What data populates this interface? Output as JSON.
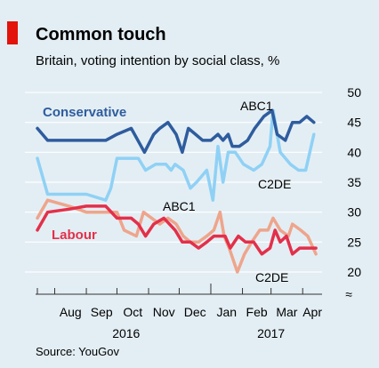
{
  "header": {
    "title": "Common touch",
    "subtitle": "Britain, voting intention by social class, %"
  },
  "footer": {
    "source": "Source: YouGov"
  },
  "colors": {
    "background": "#e3eef4",
    "accent": "#e3120b",
    "grid": "#ffffff",
    "conservative_abc1": "#2e5c9e",
    "conservative_c2de": "#8fd1f5",
    "labour_abc1": "#e3304a",
    "labour_c2de": "#eea58c"
  },
  "chart_data": {
    "type": "line",
    "title": "Common touch",
    "subtitle": "Britain, voting intention by social class, %",
    "ylim": [
      20,
      50
    ],
    "y_ticks": [
      20,
      25,
      30,
      35,
      40,
      45,
      50
    ],
    "x_range": [
      "2016-07-15",
      "2017-04-20"
    ],
    "x_month_labels": [
      "Aug",
      "Sep",
      "Oct",
      "Nov",
      "Dec",
      "Jan",
      "Feb",
      "Mar",
      "Apr"
    ],
    "x_year_labels": [
      "2016",
      "2017"
    ],
    "grid": "horizontal",
    "axis_break_symbol": "≈",
    "series": [
      {
        "party": "Conservative",
        "class": "C2DE",
        "label": "C2DE",
        "color": "#8fd1f5",
        "points": [
          [
            "2016-07-15",
            39
          ],
          [
            "2016-07-25",
            33
          ],
          [
            "2016-08-15",
            33
          ],
          [
            "2016-09-01",
            33
          ],
          [
            "2016-09-20",
            32
          ],
          [
            "2016-09-25",
            34
          ],
          [
            "2016-10-01",
            39
          ],
          [
            "2016-10-15",
            39
          ],
          [
            "2016-10-22",
            39
          ],
          [
            "2016-10-29",
            37
          ],
          [
            "2016-11-08",
            38
          ],
          [
            "2016-11-18",
            38
          ],
          [
            "2016-11-23",
            37
          ],
          [
            "2016-11-27",
            38
          ],
          [
            "2016-12-05",
            37
          ],
          [
            "2016-12-12",
            34
          ],
          [
            "2016-12-18",
            35
          ],
          [
            "2016-12-28",
            37
          ],
          [
            "2017-01-03",
            32
          ],
          [
            "2017-01-08",
            41
          ],
          [
            "2017-01-13",
            35
          ],
          [
            "2017-01-18",
            40
          ],
          [
            "2017-01-25",
            40
          ],
          [
            "2017-02-02",
            38
          ],
          [
            "2017-02-12",
            37
          ],
          [
            "2017-02-20",
            38
          ],
          [
            "2017-02-28",
            41
          ],
          [
            "2017-03-03",
            47
          ],
          [
            "2017-03-10",
            40
          ],
          [
            "2017-03-20",
            38
          ],
          [
            "2017-03-28",
            37
          ],
          [
            "2017-04-04",
            37
          ],
          [
            "2017-04-12",
            43
          ]
        ]
      },
      {
        "party": "Conservative",
        "class": "ABC1",
        "label": "ABC1",
        "color": "#2e5c9e",
        "points": [
          [
            "2016-07-15",
            44
          ],
          [
            "2016-07-25",
            42
          ],
          [
            "2016-08-15",
            42
          ],
          [
            "2016-09-01",
            42
          ],
          [
            "2016-09-20",
            42
          ],
          [
            "2016-10-01",
            43
          ],
          [
            "2016-10-15",
            44
          ],
          [
            "2016-10-28",
            40
          ],
          [
            "2016-11-06",
            43
          ],
          [
            "2016-11-12",
            44
          ],
          [
            "2016-11-20",
            45
          ],
          [
            "2016-11-28",
            43
          ],
          [
            "2016-12-04",
            40
          ],
          [
            "2016-12-10",
            44
          ],
          [
            "2016-12-17",
            43
          ],
          [
            "2016-12-24",
            42
          ],
          [
            "2017-01-01",
            42
          ],
          [
            "2017-01-08",
            43
          ],
          [
            "2017-01-13",
            42
          ],
          [
            "2017-01-18",
            43
          ],
          [
            "2017-01-22",
            41
          ],
          [
            "2017-01-29",
            41
          ],
          [
            "2017-02-06",
            42
          ],
          [
            "2017-02-13",
            44
          ],
          [
            "2017-02-22",
            46
          ],
          [
            "2017-03-02",
            47
          ],
          [
            "2017-03-07",
            43
          ],
          [
            "2017-03-15",
            42
          ],
          [
            "2017-03-22",
            45
          ],
          [
            "2017-03-29",
            45
          ],
          [
            "2017-04-05",
            46
          ],
          [
            "2017-04-12",
            45
          ]
        ]
      },
      {
        "party": "Labour",
        "class": "C2DE",
        "label": "C2DE",
        "color": "#eea58c",
        "points": [
          [
            "2016-07-15",
            29
          ],
          [
            "2016-07-25",
            32
          ],
          [
            "2016-08-15",
            31
          ],
          [
            "2016-09-01",
            30
          ],
          [
            "2016-09-20",
            30
          ],
          [
            "2016-10-01",
            30
          ],
          [
            "2016-10-08",
            27
          ],
          [
            "2016-10-20",
            26
          ],
          [
            "2016-10-27",
            30
          ],
          [
            "2016-11-04",
            29
          ],
          [
            "2016-11-12",
            28
          ],
          [
            "2016-11-20",
            29
          ],
          [
            "2016-11-28",
            28
          ],
          [
            "2016-12-05",
            26
          ],
          [
            "2016-12-12",
            25
          ],
          [
            "2016-12-20",
            25
          ],
          [
            "2016-12-28",
            26
          ],
          [
            "2017-01-04",
            27
          ],
          [
            "2017-01-10",
            30
          ],
          [
            "2017-01-14",
            26
          ],
          [
            "2017-01-19",
            24
          ],
          [
            "2017-01-27",
            20
          ],
          [
            "2017-02-03",
            23
          ],
          [
            "2017-02-10",
            25
          ],
          [
            "2017-02-18",
            27
          ],
          [
            "2017-02-26",
            27
          ],
          [
            "2017-03-03",
            29
          ],
          [
            "2017-03-10",
            27
          ],
          [
            "2017-03-18",
            26
          ],
          [
            "2017-03-22",
            28
          ],
          [
            "2017-03-30",
            27
          ],
          [
            "2017-04-06",
            26
          ],
          [
            "2017-04-14",
            23
          ]
        ]
      },
      {
        "party": "Labour",
        "class": "ABC1",
        "label": "ABC1",
        "color": "#e3304a",
        "points": [
          [
            "2016-07-15",
            27
          ],
          [
            "2016-07-25",
            30
          ],
          [
            "2016-08-15",
            30.5
          ],
          [
            "2016-09-01",
            31
          ],
          [
            "2016-09-20",
            31
          ],
          [
            "2016-10-01",
            29
          ],
          [
            "2016-10-15",
            29
          ],
          [
            "2016-10-22",
            28
          ],
          [
            "2016-10-29",
            26
          ],
          [
            "2016-11-06",
            28
          ],
          [
            "2016-11-16",
            29
          ],
          [
            "2016-11-27",
            27
          ],
          [
            "2016-12-04",
            25
          ],
          [
            "2016-12-12",
            25
          ],
          [
            "2016-12-20",
            24
          ],
          [
            "2016-12-28",
            25
          ],
          [
            "2017-01-04",
            26
          ],
          [
            "2017-01-10",
            26
          ],
          [
            "2017-01-15",
            26
          ],
          [
            "2017-01-20",
            24
          ],
          [
            "2017-01-28",
            26
          ],
          [
            "2017-02-04",
            25
          ],
          [
            "2017-02-12",
            25
          ],
          [
            "2017-02-20",
            23
          ],
          [
            "2017-02-28",
            24
          ],
          [
            "2017-03-05",
            27
          ],
          [
            "2017-03-10",
            25
          ],
          [
            "2017-03-16",
            26
          ],
          [
            "2017-03-22",
            23
          ],
          [
            "2017-03-29",
            24
          ],
          [
            "2017-04-05",
            24
          ],
          [
            "2017-04-14",
            24
          ]
        ]
      }
    ],
    "annotations": {
      "conservative_label": "Conservative",
      "labour_label": "Labour",
      "abc1_label": "ABC1",
      "c2de_label": "C2DE"
    }
  }
}
